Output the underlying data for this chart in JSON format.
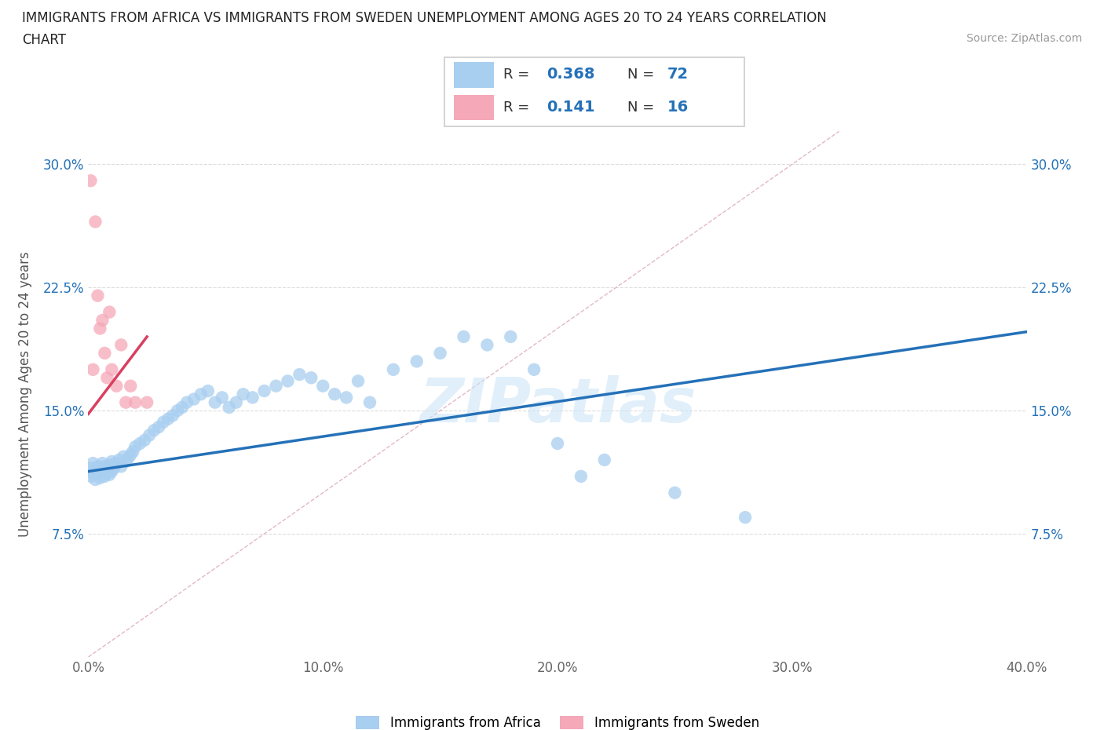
{
  "title_line1": "IMMIGRANTS FROM AFRICA VS IMMIGRANTS FROM SWEDEN UNEMPLOYMENT AMONG AGES 20 TO 24 YEARS CORRELATION",
  "title_line2": "CHART",
  "source": "Source: ZipAtlas.com",
  "ylabel": "Unemployment Among Ages 20 to 24 years",
  "watermark": "ZIPatlas",
  "series1_label": "Immigrants from Africa",
  "series2_label": "Immigrants from Sweden",
  "series1_color": "#a8cef0",
  "series2_color": "#f5a8b8",
  "trendline1_color": "#2471b8",
  "trendline2_color": "#d94060",
  "refline_color": "#e0b0c0",
  "xmin": 0.0,
  "xmax": 0.4,
  "ymin": 0.0,
  "ymax": 0.32,
  "xticks": [
    0.0,
    0.1,
    0.2,
    0.3,
    0.4
  ],
  "yticks": [
    0.075,
    0.15,
    0.225,
    0.3
  ],
  "xtick_labels": [
    "0.0%",
    "10.0%",
    "20.0%",
    "30.0%",
    "40.0%"
  ],
  "ytick_labels": [
    "7.5%",
    "15.0%",
    "22.5%",
    "30.0%"
  ],
  "africa_x": [
    0.001,
    0.001,
    0.002,
    0.002,
    0.003,
    0.003,
    0.004,
    0.004,
    0.005,
    0.005,
    0.006,
    0.006,
    0.007,
    0.007,
    0.008,
    0.008,
    0.009,
    0.009,
    0.01,
    0.01,
    0.011,
    0.012,
    0.013,
    0.014,
    0.015,
    0.016,
    0.017,
    0.018,
    0.019,
    0.02,
    0.022,
    0.024,
    0.026,
    0.028,
    0.03,
    0.032,
    0.034,
    0.036,
    0.038,
    0.04,
    0.042,
    0.045,
    0.048,
    0.051,
    0.054,
    0.057,
    0.06,
    0.063,
    0.066,
    0.07,
    0.075,
    0.08,
    0.085,
    0.09,
    0.095,
    0.1,
    0.105,
    0.11,
    0.115,
    0.12,
    0.13,
    0.14,
    0.15,
    0.16,
    0.17,
    0.18,
    0.19,
    0.2,
    0.21,
    0.22,
    0.25,
    0.28
  ],
  "africa_y": [
    0.11,
    0.115,
    0.112,
    0.118,
    0.108,
    0.114,
    0.116,
    0.112,
    0.109,
    0.115,
    0.118,
    0.113,
    0.11,
    0.116,
    0.112,
    0.114,
    0.117,
    0.111,
    0.113,
    0.119,
    0.115,
    0.118,
    0.12,
    0.116,
    0.122,
    0.119,
    0.121,
    0.123,
    0.125,
    0.128,
    0.13,
    0.132,
    0.135,
    0.138,
    0.14,
    0.143,
    0.145,
    0.147,
    0.15,
    0.152,
    0.155,
    0.157,
    0.16,
    0.162,
    0.155,
    0.158,
    0.152,
    0.155,
    0.16,
    0.158,
    0.162,
    0.165,
    0.168,
    0.172,
    0.17,
    0.165,
    0.16,
    0.158,
    0.168,
    0.155,
    0.175,
    0.18,
    0.185,
    0.195,
    0.19,
    0.195,
    0.175,
    0.13,
    0.11,
    0.12,
    0.1,
    0.085
  ],
  "sweden_x": [
    0.001,
    0.002,
    0.003,
    0.004,
    0.005,
    0.006,
    0.007,
    0.008,
    0.009,
    0.01,
    0.012,
    0.014,
    0.016,
    0.018,
    0.02,
    0.025
  ],
  "sweden_y": [
    0.29,
    0.175,
    0.265,
    0.22,
    0.2,
    0.205,
    0.185,
    0.17,
    0.21,
    0.175,
    0.165,
    0.19,
    0.155,
    0.165,
    0.155,
    0.155
  ],
  "trendline1_x": [
    0.0,
    0.4
  ],
  "trendline1_y": [
    0.113,
    0.198
  ],
  "trendline2_x": [
    0.0,
    0.025
  ],
  "trendline2_y": [
    0.148,
    0.195
  ],
  "refline_x": [
    0.0,
    0.32
  ],
  "refline_y": [
    0.0,
    0.32
  ],
  "legend_r1": "0.368",
  "legend_n1": "72",
  "legend_r2": "0.141",
  "legend_n2": "16",
  "title_fontsize": 12,
  "tick_fontsize": 12,
  "ylabel_fontsize": 12
}
